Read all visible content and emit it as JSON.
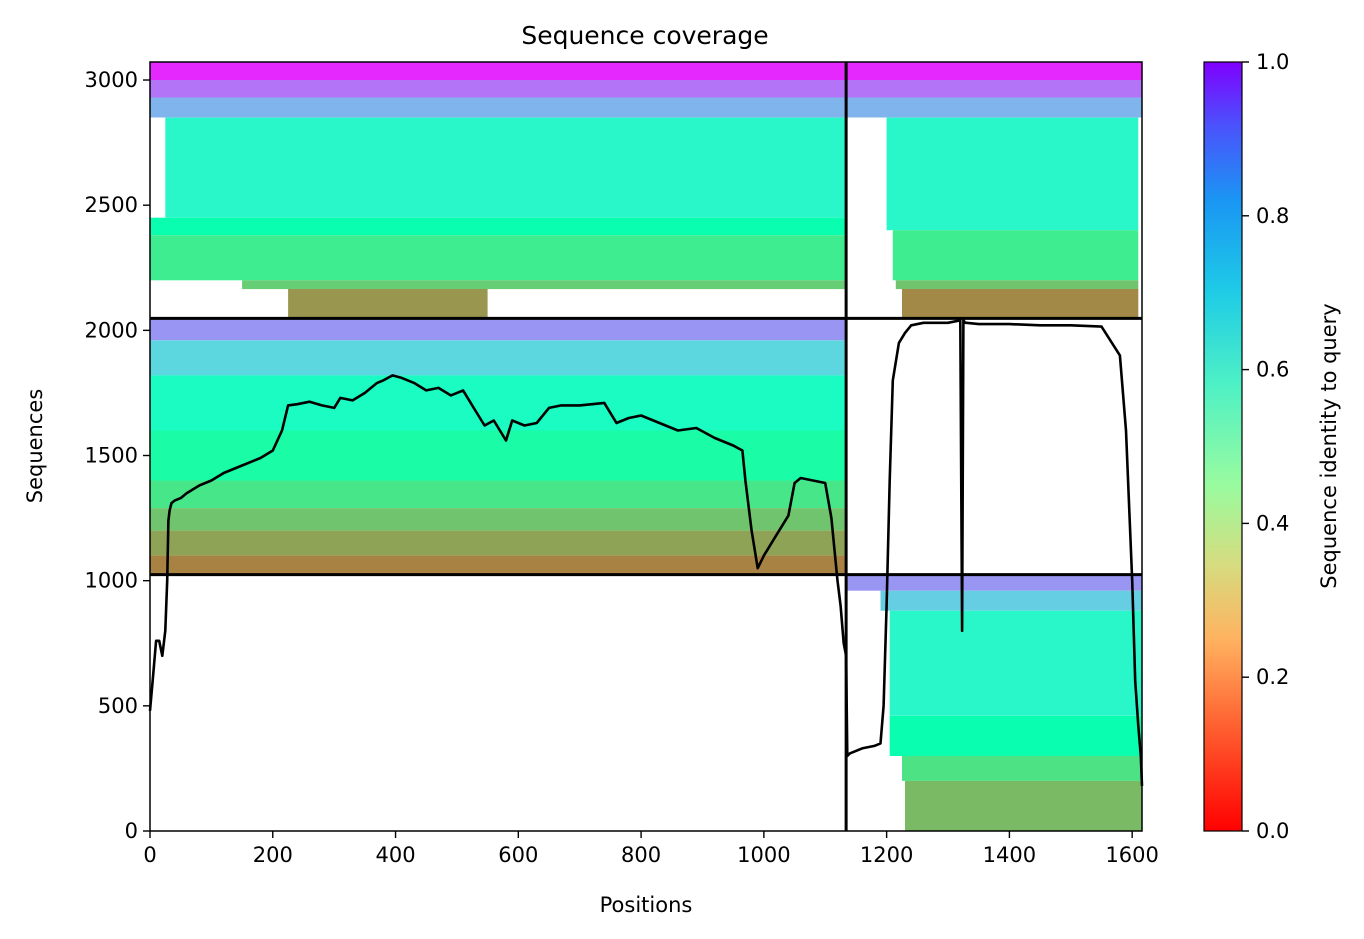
{
  "chart_data": {
    "type": "heatmap",
    "title": "Sequence coverage",
    "xlabel": "Positions",
    "ylabel": "Sequences",
    "xlim": [
      0,
      1616
    ],
    "ylim": [
      0,
      3072
    ],
    "xticks": [
      0,
      200,
      400,
      600,
      800,
      1000,
      1200,
      1400,
      1600
    ],
    "yticks": [
      0,
      500,
      1000,
      1500,
      2000,
      2500,
      3000
    ],
    "colorbar": {
      "label": "Sequence identity to query",
      "colormap": "rainbow_r",
      "range": [
        0.0,
        1.0
      ],
      "ticks": [
        0.0,
        0.2,
        0.4,
        0.6,
        0.8,
        1.0
      ]
    },
    "chain_boundaries": {
      "x": [
        1134
      ],
      "y": [
        1024,
        2048
      ]
    },
    "blocks": [
      {
        "name": "chain1-paired",
        "x_range": [
          0,
          1134
        ],
        "y_range": [
          2048,
          3072
        ],
        "bands": [
          {
            "y": [
              3000,
              3072
            ],
            "identity": 0.95,
            "x": [
              0,
              1134
            ]
          },
          {
            "y": [
              2930,
              3000
            ],
            "identity": 0.85,
            "x": [
              0,
              1134
            ]
          },
          {
            "y": [
              2850,
              2930
            ],
            "identity": 0.75,
            "x": [
              0,
              1134
            ]
          },
          {
            "y": [
              2450,
              2850
            ],
            "identity": 0.58,
            "x": [
              25,
              1134
            ]
          },
          {
            "y": [
              2380,
              2450
            ],
            "identity": 0.48,
            "x": [
              0,
              1134
            ]
          },
          {
            "y": [
              2200,
              2380
            ],
            "identity": 0.38,
            "x": [
              0,
              1134
            ]
          },
          {
            "y": [
              2165,
              2200
            ],
            "identity": 0.3,
            "x": [
              150,
              1134
            ]
          },
          {
            "y": [
              2048,
              2165
            ],
            "identity": 0.2,
            "x": [
              225,
              550
            ]
          }
        ]
      },
      {
        "name": "chain2-paired",
        "x_range": [
          1134,
          1616
        ],
        "y_range": [
          2048,
          3072
        ],
        "bands": [
          {
            "y": [
              3000,
              3072
            ],
            "identity": 0.95,
            "x": [
              1134,
              1616
            ]
          },
          {
            "y": [
              2930,
              3000
            ],
            "identity": 0.85,
            "x": [
              1134,
              1616
            ]
          },
          {
            "y": [
              2850,
              2930
            ],
            "identity": 0.75,
            "x": [
              1134,
              1616
            ]
          },
          {
            "y": [
              2400,
              2850
            ],
            "identity": 0.58,
            "x": [
              1200,
              1610
            ]
          },
          {
            "y": [
              2200,
              2400
            ],
            "identity": 0.38,
            "x": [
              1210,
              1610
            ]
          },
          {
            "y": [
              2165,
              2200
            ],
            "identity": 0.28,
            "x": [
              1215,
              1610
            ]
          },
          {
            "y": [
              2048,
              2165
            ],
            "identity": 0.18,
            "x": [
              1225,
              1610
            ]
          }
        ]
      },
      {
        "name": "chain1-unpaired",
        "x_range": [
          0,
          1134
        ],
        "y_range": [
          1024,
          2048
        ],
        "bands": [
          {
            "y": [
              1960,
              2048
            ],
            "identity": 0.8,
            "x": [
              0,
              1134
            ]
          },
          {
            "y": [
              1820,
              1960
            ],
            "identity": 0.68,
            "x": [
              0,
              1134
            ]
          },
          {
            "y": [
              1600,
              1820
            ],
            "identity": 0.55,
            "x": [
              0,
              1134
            ]
          },
          {
            "y": [
              1400,
              1600
            ],
            "identity": 0.45,
            "x": [
              0,
              1134
            ]
          },
          {
            "y": [
              1290,
              1400
            ],
            "identity": 0.36,
            "x": [
              0,
              1134
            ]
          },
          {
            "y": [
              1200,
              1290
            ],
            "identity": 0.28,
            "x": [
              0,
              1134
            ]
          },
          {
            "y": [
              1100,
              1200
            ],
            "identity": 0.22,
            "x": [
              0,
              1134
            ]
          },
          {
            "y": [
              1024,
              1100
            ],
            "identity": 0.17,
            "x": [
              0,
              1134
            ]
          }
        ]
      },
      {
        "name": "chain2-unpaired",
        "x_range": [
          1134,
          1616
        ],
        "y_range": [
          0,
          1024
        ],
        "bands": [
          {
            "y": [
              960,
              1024
            ],
            "identity": 0.8,
            "x": [
              1134,
              1616
            ]
          },
          {
            "y": [
              880,
              960
            ],
            "identity": 0.7,
            "x": [
              1190,
              1616
            ]
          },
          {
            "y": [
              460,
              880
            ],
            "identity": 0.58,
            "x": [
              1205,
              1616
            ]
          },
          {
            "y": [
              300,
              460
            ],
            "identity": 0.48,
            "x": [
              1205,
              1616
            ]
          },
          {
            "y": [
              200,
              300
            ],
            "identity": 0.35,
            "x": [
              1225,
              1616
            ]
          },
          {
            "y": [
              0,
              200
            ],
            "identity": 0.26,
            "x": [
              1230,
              1616
            ]
          }
        ]
      }
    ],
    "coverage": {
      "name": "coverage",
      "x": [
        0,
        5,
        10,
        15,
        20,
        25,
        28,
        30,
        32,
        35,
        40,
        50,
        60,
        80,
        100,
        120,
        150,
        180,
        200,
        215,
        225,
        240,
        260,
        280,
        300,
        310,
        330,
        350,
        370,
        380,
        395,
        410,
        430,
        450,
        470,
        490,
        510,
        530,
        545,
        560,
        570,
        580,
        590,
        610,
        630,
        650,
        670,
        700,
        740,
        760,
        780,
        800,
        830,
        860,
        890,
        920,
        950,
        965,
        970,
        980,
        990,
        1000,
        1020,
        1040,
        1050,
        1060,
        1080,
        1100,
        1110,
        1120,
        1125,
        1130,
        1134,
        1136,
        1140,
        1160,
        1180,
        1190,
        1195,
        1200,
        1205,
        1210,
        1220,
        1230,
        1240,
        1260,
        1280,
        1300,
        1320,
        1323,
        1325,
        1328,
        1330,
        1350,
        1400,
        1450,
        1500,
        1550,
        1580,
        1590,
        1600,
        1605,
        1610,
        1614,
        1616
      ],
      "y": [
        480,
        620,
        760,
        760,
        700,
        800,
        1000,
        1240,
        1280,
        1310,
        1320,
        1330,
        1350,
        1380,
        1400,
        1430,
        1460,
        1490,
        1520,
        1600,
        1700,
        1705,
        1715,
        1700,
        1690,
        1730,
        1720,
        1750,
        1790,
        1800,
        1820,
        1810,
        1790,
        1760,
        1770,
        1740,
        1760,
        1680,
        1620,
        1640,
        1600,
        1560,
        1640,
        1620,
        1630,
        1690,
        1700,
        1700,
        1710,
        1630,
        1650,
        1660,
        1630,
        1600,
        1610,
        1570,
        1540,
        1520,
        1400,
        1200,
        1050,
        1100,
        1180,
        1260,
        1390,
        1410,
        1400,
        1390,
        1250,
        1000,
        900,
        750,
        700,
        300,
        310,
        330,
        340,
        350,
        500,
        900,
        1400,
        1800,
        1950,
        1990,
        2020,
        2030,
        2030,
        2030,
        2040,
        800,
        2040,
        2030,
        2030,
        2025,
        2025,
        2020,
        2020,
        2015,
        1900,
        1600,
        1000,
        600,
        420,
        300,
        180
      ]
    }
  }
}
